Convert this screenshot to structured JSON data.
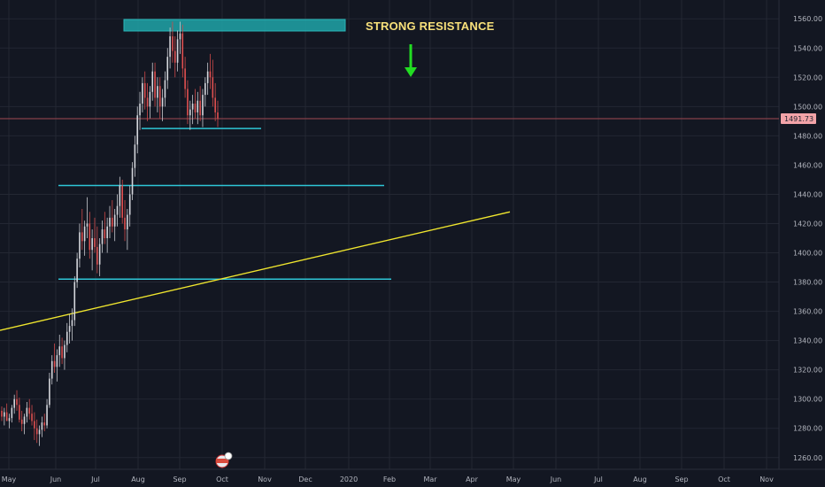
{
  "chart_data": {
    "type": "candlestick",
    "ylim": [
      1252,
      1568
    ],
    "y_ticks": [
      "1260.00",
      "1280.00",
      "1300.00",
      "1320.00",
      "1340.00",
      "1360.00",
      "1380.00",
      "1400.00",
      "1420.00",
      "1440.00",
      "1460.00",
      "1480.00",
      "1500.00",
      "1520.00",
      "1540.00",
      "1560.00"
    ],
    "x_ticks": [
      "May",
      "Jun",
      "Jul",
      "Aug",
      "Sep",
      "Oct",
      "Nov",
      "Dec",
      "2020",
      "Feb",
      "Mar",
      "Apr",
      "May",
      "Jun",
      "Jul",
      "Aug",
      "Sep",
      "Oct",
      "Nov"
    ],
    "grid": true,
    "current_price": "1491.73",
    "annotation": {
      "text": "STRONG RESISTANCE",
      "color": "#f7e07a"
    },
    "resistance_zone": {
      "from": "Aug 2019",
      "to": "Dec 2019",
      "y_low": 1554,
      "y_high": 1560
    },
    "horizontal_levels": [
      {
        "y": 1485,
        "from": "Aug 2019",
        "to": "Oct 2019"
      },
      {
        "y": 1446,
        "from": "Jun 2019",
        "to": "Jan 2020"
      },
      {
        "y": 1382,
        "from": "Jun 2019",
        "to": "Jan 2020"
      }
    ],
    "trend_line": {
      "from": [
        "Apr 2019",
        1347
      ],
      "to": [
        "Apr 2020",
        1428
      ],
      "color": "#f0e62e"
    },
    "arrow": {
      "direction": "down",
      "color": "#22dd22"
    },
    "candles": [
      [
        1292,
        1295,
        1285,
        1288
      ],
      [
        1288,
        1294,
        1282,
        1291
      ],
      [
        1291,
        1297,
        1286,
        1285
      ],
      [
        1285,
        1290,
        1280,
        1287
      ],
      [
        1287,
        1296,
        1284,
        1294
      ],
      [
        1294,
        1303,
        1290,
        1300
      ],
      [
        1300,
        1306,
        1292,
        1296
      ],
      [
        1296,
        1301,
        1284,
        1286
      ],
      [
        1286,
        1292,
        1278,
        1283
      ],
      [
        1283,
        1290,
        1276,
        1288
      ],
      [
        1288,
        1298,
        1284,
        1294
      ],
      [
        1294,
        1300,
        1286,
        1290
      ],
      [
        1290,
        1296,
        1282,
        1285
      ],
      [
        1285,
        1291,
        1272,
        1280
      ],
      [
        1280,
        1286,
        1270,
        1276
      ],
      [
        1276,
        1282,
        1268,
        1279
      ],
      [
        1279,
        1288,
        1274,
        1284
      ],
      [
        1284,
        1290,
        1278,
        1282
      ],
      [
        1282,
        1300,
        1280,
        1296
      ],
      [
        1296,
        1318,
        1294,
        1314
      ],
      [
        1314,
        1330,
        1310,
        1326
      ],
      [
        1326,
        1338,
        1318,
        1322
      ],
      [
        1322,
        1334,
        1312,
        1330
      ],
      [
        1330,
        1344,
        1322,
        1336
      ],
      [
        1336,
        1342,
        1324,
        1328
      ],
      [
        1328,
        1340,
        1320,
        1337
      ],
      [
        1337,
        1352,
        1332,
        1346
      ],
      [
        1346,
        1358,
        1338,
        1350
      ],
      [
        1350,
        1362,
        1340,
        1354
      ],
      [
        1354,
        1384,
        1350,
        1380
      ],
      [
        1380,
        1400,
        1376,
        1396
      ],
      [
        1396,
        1420,
        1390,
        1414
      ],
      [
        1414,
        1430,
        1402,
        1408
      ],
      [
        1408,
        1422,
        1398,
        1418
      ],
      [
        1418,
        1438,
        1410,
        1420
      ],
      [
        1420,
        1428,
        1396,
        1402
      ],
      [
        1402,
        1416,
        1388,
        1410
      ],
      [
        1410,
        1424,
        1400,
        1404
      ],
      [
        1404,
        1418,
        1386,
        1392
      ],
      [
        1392,
        1410,
        1384,
        1406
      ],
      [
        1406,
        1422,
        1400,
        1416
      ],
      [
        1416,
        1428,
        1406,
        1410
      ],
      [
        1410,
        1424,
        1400,
        1418
      ],
      [
        1418,
        1432,
        1410,
        1424
      ],
      [
        1424,
        1436,
        1414,
        1418
      ],
      [
        1418,
        1430,
        1408,
        1426
      ],
      [
        1426,
        1440,
        1418,
        1432
      ],
      [
        1432,
        1452,
        1424,
        1446
      ],
      [
        1446,
        1450,
        1420,
        1424
      ],
      [
        1424,
        1436,
        1408,
        1416
      ],
      [
        1416,
        1430,
        1402,
        1426
      ],
      [
        1426,
        1446,
        1418,
        1440
      ],
      [
        1440,
        1462,
        1436,
        1458
      ],
      [
        1458,
        1480,
        1452,
        1474
      ],
      [
        1474,
        1500,
        1468,
        1494
      ],
      [
        1494,
        1510,
        1484,
        1502
      ],
      [
        1502,
        1520,
        1496,
        1516
      ],
      [
        1516,
        1524,
        1498,
        1506
      ],
      [
        1506,
        1516,
        1490,
        1500
      ],
      [
        1500,
        1514,
        1492,
        1510
      ],
      [
        1510,
        1530,
        1504,
        1524
      ],
      [
        1524,
        1530,
        1500,
        1506
      ],
      [
        1506,
        1520,
        1496,
        1514
      ],
      [
        1514,
        1520,
        1492,
        1500
      ],
      [
        1500,
        1512,
        1490,
        1506
      ],
      [
        1506,
        1524,
        1500,
        1518
      ],
      [
        1518,
        1540,
        1512,
        1534
      ],
      [
        1534,
        1554,
        1526,
        1548
      ],
      [
        1548,
        1558,
        1530,
        1538
      ],
      [
        1538,
        1548,
        1520,
        1530
      ],
      [
        1530,
        1552,
        1524,
        1546
      ],
      [
        1546,
        1558,
        1536,
        1550
      ],
      [
        1550,
        1556,
        1520,
        1526
      ],
      [
        1526,
        1534,
        1506,
        1512
      ],
      [
        1512,
        1518,
        1488,
        1494
      ],
      [
        1494,
        1504,
        1484,
        1498
      ],
      [
        1498,
        1508,
        1488,
        1502
      ],
      [
        1502,
        1512,
        1492,
        1496
      ],
      [
        1496,
        1510,
        1488,
        1504
      ],
      [
        1504,
        1514,
        1490,
        1494
      ],
      [
        1494,
        1512,
        1486,
        1508
      ],
      [
        1508,
        1520,
        1500,
        1516
      ],
      [
        1516,
        1530,
        1508,
        1524
      ],
      [
        1524,
        1536,
        1512,
        1520
      ],
      [
        1520,
        1532,
        1500,
        1506
      ],
      [
        1506,
        1516,
        1490,
        1496
      ],
      [
        1496,
        1504,
        1486,
        1492
      ]
    ]
  }
}
